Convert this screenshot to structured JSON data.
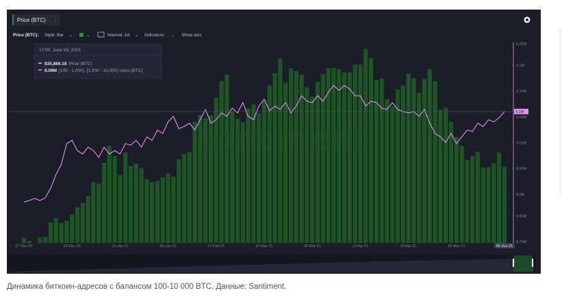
{
  "toolbar": {
    "tab": "Price (BTC)",
    "metric": "Price (BTC):",
    "style": "Style: Bar",
    "interval": "Interval: 1d",
    "indicators": "Indicators:",
    "show_axis": "Show axis"
  },
  "chart_data": {
    "type": "combo",
    "watermark": "santiment",
    "categories": [
      "07 Dec 20",
      null,
      null,
      null,
      null,
      null,
      null,
      null,
      null,
      "25 Dec 20",
      null,
      null,
      null,
      null,
      null,
      null,
      null,
      null,
      "12 Jan 21",
      null,
      null,
      null,
      null,
      null,
      null,
      null,
      null,
      "30 Jan 21",
      null,
      null,
      null,
      null,
      null,
      null,
      null,
      null,
      "17 Feb 21",
      null,
      null,
      null,
      null,
      null,
      null,
      null,
      null,
      "07 Mar 21",
      null,
      null,
      null,
      null,
      null,
      null,
      null,
      null,
      "25 Mar 21",
      null,
      null,
      null,
      null,
      null,
      null,
      null,
      null,
      "12 Apr 21",
      null,
      null,
      null,
      null,
      null,
      null,
      null,
      null,
      "30 Apr 21",
      null,
      null,
      null,
      null,
      null,
      null,
      null,
      null,
      "18 May 21",
      null,
      null,
      null,
      null,
      null,
      null,
      null,
      null,
      "05 Jun 21"
    ],
    "series": [
      {
        "name": "Price (BTC)",
        "type": "bar",
        "axis": "y2",
        "color": "#1d5524",
        "values": [
          19200,
          18500,
          18000,
          19200,
          19400,
          22800,
          23800,
          22700,
          23200,
          24700,
          26300,
          27400,
          29000,
          32200,
          31900,
          36800,
          40800,
          38400,
          33900,
          39200,
          36000,
          36600,
          35500,
          33000,
          32300,
          32500,
          33400,
          34300,
          33500,
          37600,
          38900,
          39300,
          46400,
          48000,
          47200,
          47900,
          52100,
          55900,
          57500,
          48800,
          47100,
          46300,
          49600,
          50500,
          48400,
          51200,
          54900,
          57800,
          61200,
          55600,
          58900,
          58300,
          57400,
          54500,
          52300,
          55800,
          57600,
          58900,
          59000,
          58700,
          58000,
          58000,
          59800,
          59800,
          63500,
          61300,
          56200,
          56500,
          51700,
          50000,
          54000,
          54900,
          57700,
          56600,
          53200,
          56400,
          58800,
          55900,
          49200,
          49700,
          46400,
          42900,
          40700,
          37500,
          38400,
          39300,
          35700,
          35700,
          36700,
          39200,
          35866.18
        ]
      },
      {
        "name": "[100 - 1,000), [1,000 - 10,000) coins (BTC)",
        "type": "line",
        "color": "#e58ff0",
        "values": [
          8882000,
          8885500,
          8890300,
          8885500,
          8891900,
          8914200,
          8946000,
          8969900,
          9017700,
          9025600,
          9001700,
          8993800,
          9009700,
          9001700,
          8985800,
          9009700,
          8993800,
          9001700,
          8993800,
          9017700,
          9014500,
          9025600,
          9009700,
          9033600,
          9025600,
          9049500,
          9041500,
          9068600,
          9081300,
          9052700,
          9057500,
          9065400,
          9049500,
          9073400,
          9097300,
          9065400,
          9073400,
          9089300,
          9081300,
          9100400,
          9089300,
          9113200,
          9081300,
          9073400,
          9105200,
          9121100,
          9094100,
          9105200,
          9097300,
          9113200,
          9089300,
          9105200,
          9129100,
          9116400,
          9113200,
          9129100,
          9116400,
          9137100,
          9153000,
          9141800,
          9153000,
          9145000,
          9129100,
          9129100,
          9105200,
          9116400,
          9113200,
          9100400,
          9097300,
          9113200,
          9097300,
          9092500,
          9089300,
          9092500,
          9081300,
          9097300,
          9065400,
          9041500,
          9033600,
          9020800,
          9041500,
          9017700,
          9033600,
          9049500,
          9046300,
          9065400,
          9057500,
          9073400,
          9068600,
          9078200,
          9092500
        ]
      }
    ],
    "ylim": [
      8790000,
      9250000
    ],
    "yticks": [
      {
        "value": 9250000,
        "label": "9.25M"
      },
      {
        "value": 9200000,
        "label": "9.2M"
      },
      {
        "value": 9140000,
        "label": "9.14M"
      },
      {
        "value": 9080000,
        "label": "9.08M"
      },
      {
        "value": 9020000,
        "label": "9.02M"
      },
      {
        "value": 8960000,
        "label": "8.96M"
      },
      {
        "value": 8900000,
        "label": "8.9M"
      },
      {
        "value": 8850000,
        "label": "8.85M"
      },
      {
        "value": 8790000,
        "label": "8.79M"
      }
    ],
    "y2lim": [
      18000,
      65000
    ],
    "annotations": [
      {
        "text": "9.1M"
      }
    ],
    "tooltip": {
      "date": "17:00, June 05, 2021",
      "values": [
        "$35,866.18",
        "9.09M"
      ]
    }
  },
  "caption": "Динамика биткоин-адресов с балансом 100-10 000 BTC. Данные: Santiment."
}
